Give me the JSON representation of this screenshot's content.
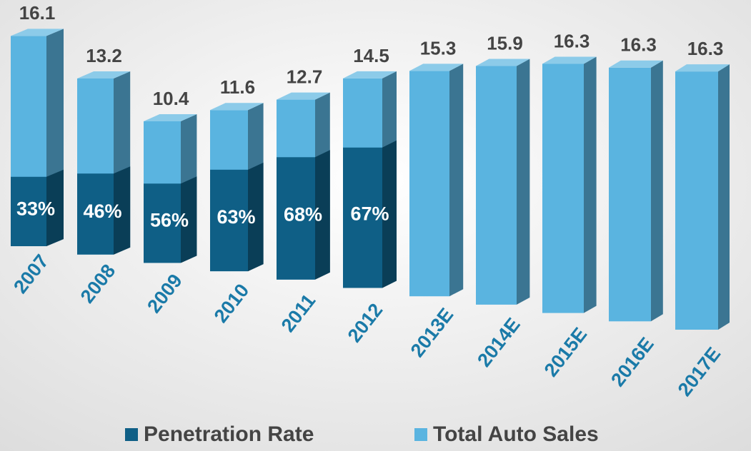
{
  "chart_data": {
    "type": "bar",
    "categories": [
      "2007",
      "2008",
      "2009",
      "2010",
      "2011",
      "2012",
      "2013E",
      "2014E",
      "2015E",
      "2016E",
      "2017E"
    ],
    "series": [
      {
        "name": "Penetration Rate",
        "color": "#0f5f86",
        "values": [
          33,
          46,
          56,
          63,
          68,
          67,
          null,
          null,
          null,
          null,
          null
        ],
        "value_labels": [
          "33%",
          "46%",
          "56%",
          "63%",
          "68%",
          "67%",
          null,
          null,
          null,
          null,
          null
        ]
      },
      {
        "name": "Total Auto Sales",
        "color": "#5ab4e0",
        "values": [
          16.1,
          13.2,
          10.4,
          11.6,
          12.7,
          14.5,
          15.3,
          15.9,
          16.3,
          16.3,
          16.3
        ]
      }
    ],
    "legend": "bottom"
  }
}
